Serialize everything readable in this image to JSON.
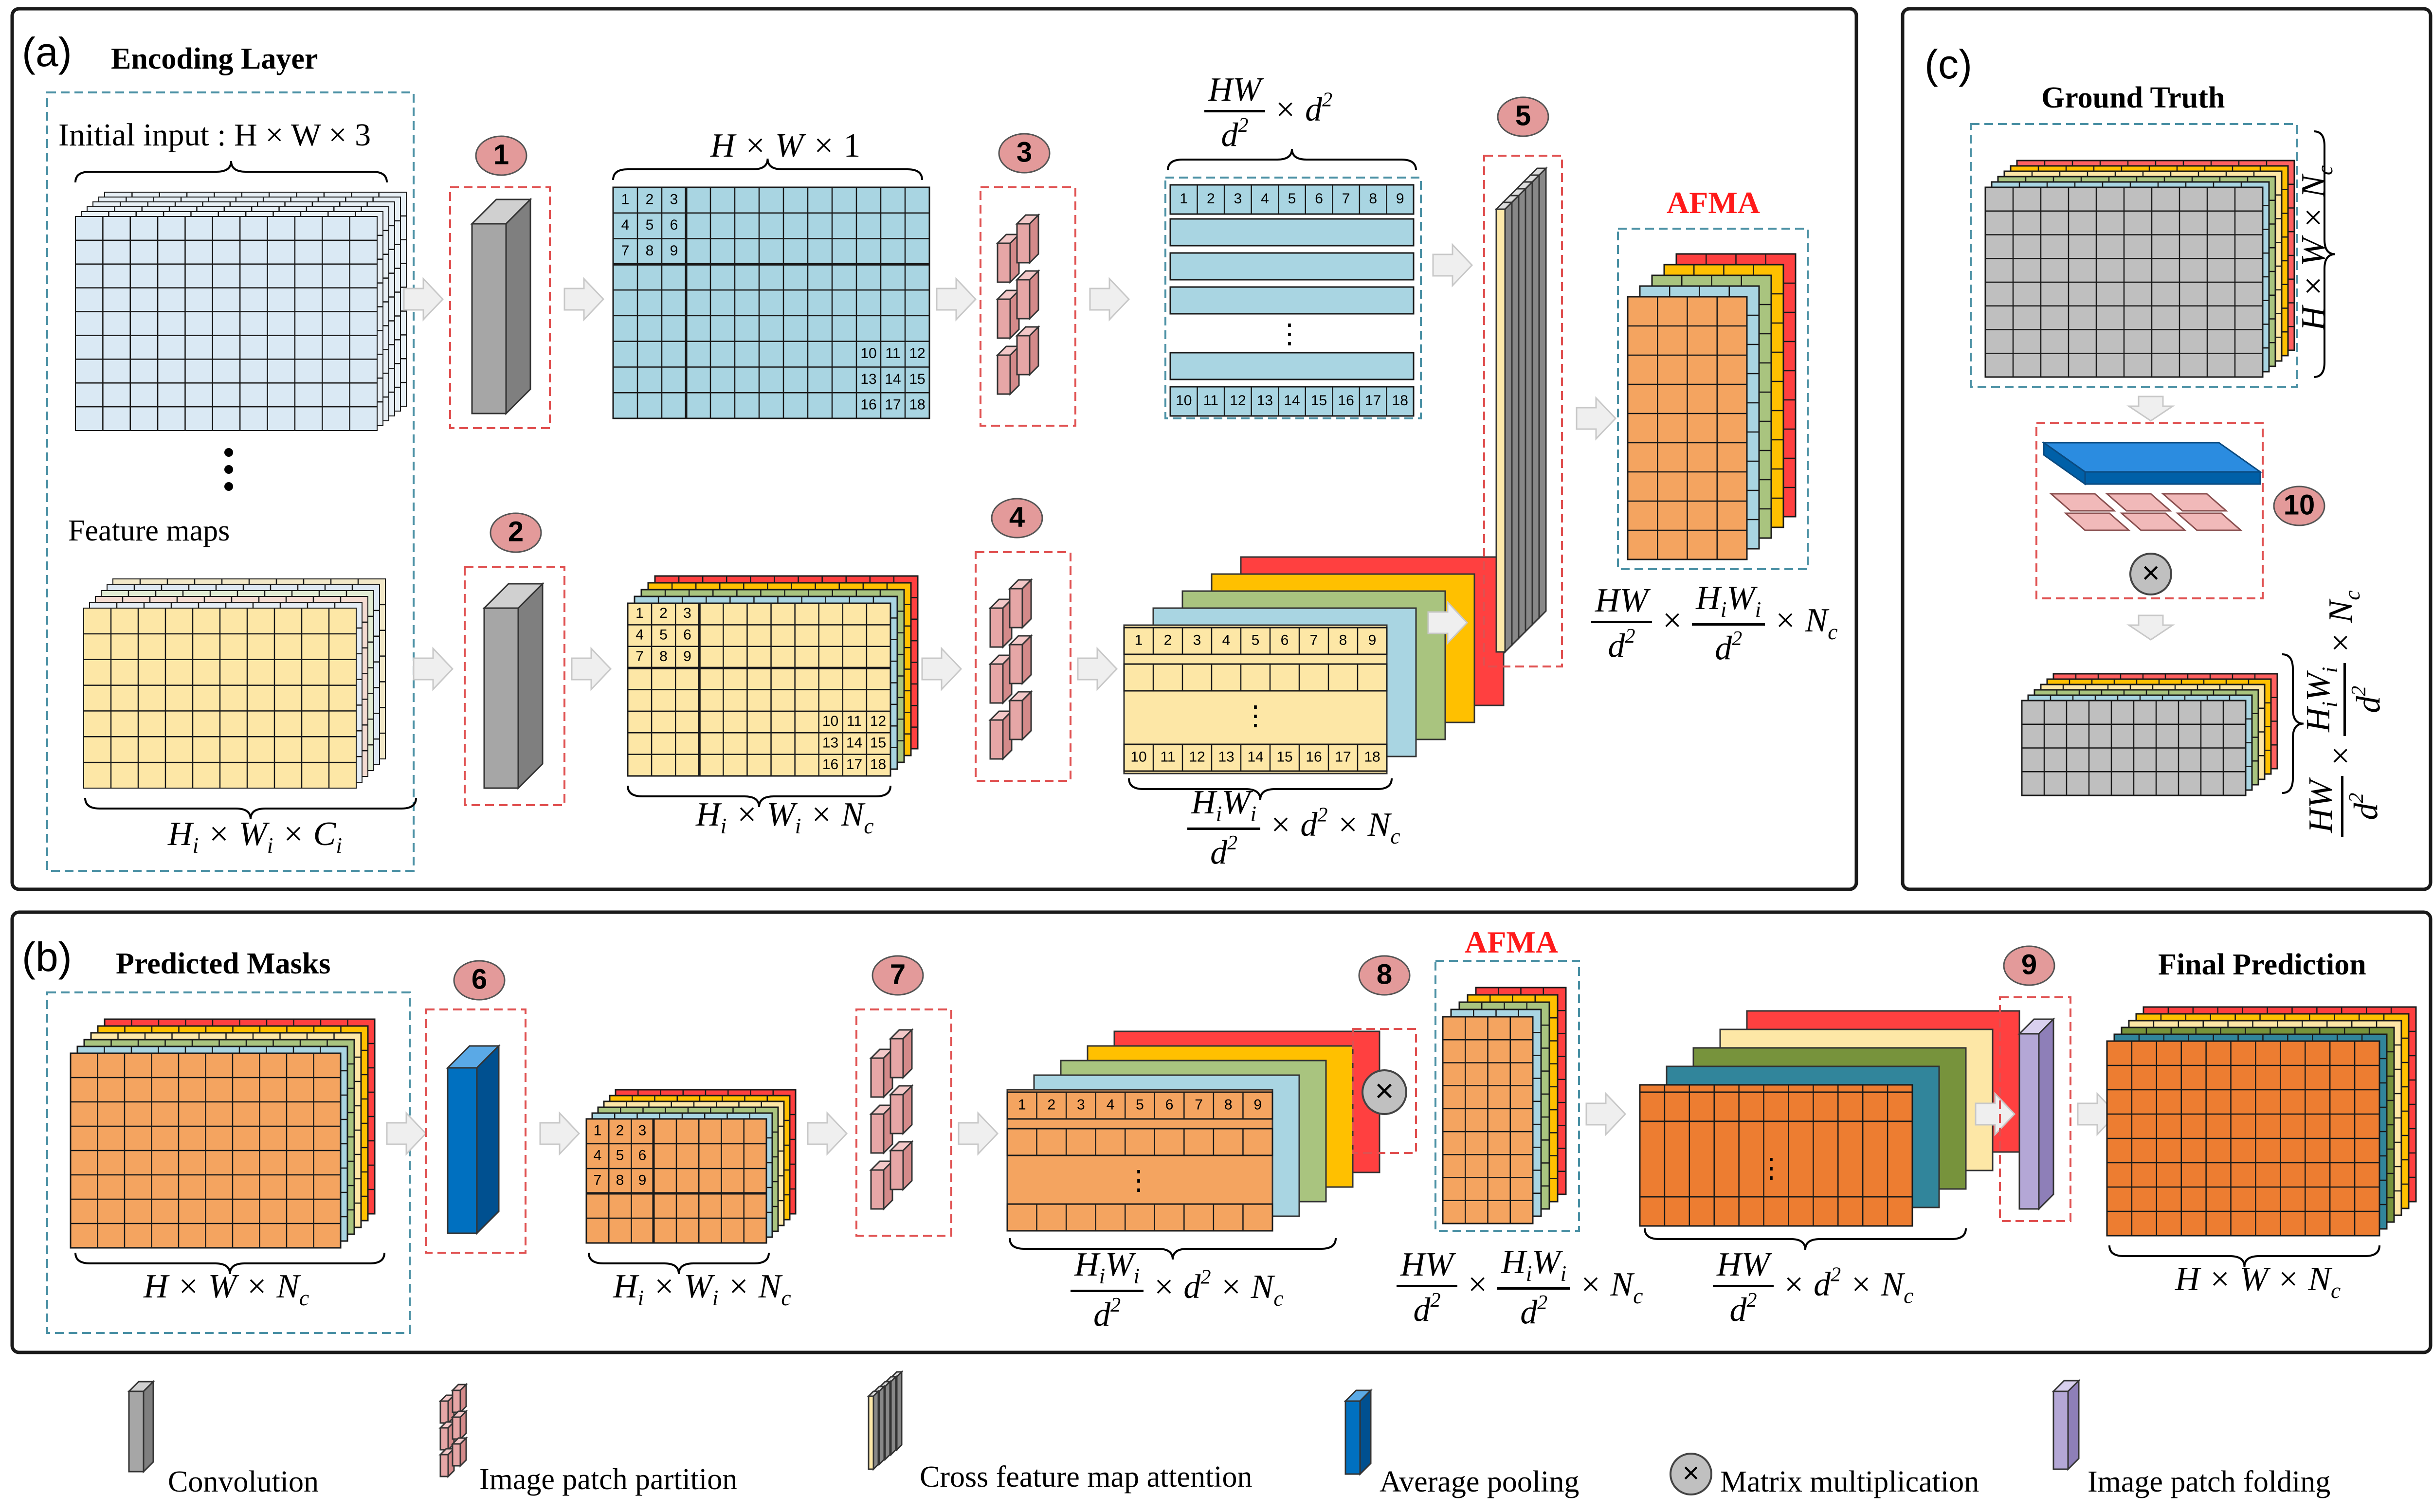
{
  "panels": {
    "a": {
      "label": "(a)",
      "title": "Encoding Layer"
    },
    "b": {
      "label": "(b)",
      "title": "Predicted Masks",
      "final_title": "Final Prediction"
    },
    "c": {
      "label": "(c)",
      "title": "Ground Truth"
    }
  },
  "texts": {
    "initial_input": "Initial input : H × W × 3",
    "feature_maps": "Feature maps",
    "afma": "AFMA",
    "vdots": "⋮",
    "dots3": "⋮"
  },
  "steps": [
    "1",
    "2",
    "3",
    "4",
    "5",
    "6",
    "7",
    "8",
    "9",
    "10"
  ],
  "cell_numbers": {
    "top": [
      [
        "1",
        "2",
        "3"
      ],
      [
        "4",
        "5",
        "6"
      ],
      [
        "7",
        "8",
        "9"
      ]
    ],
    "bottom": [
      [
        "10",
        "11",
        "12"
      ],
      [
        "13",
        "14",
        "15"
      ],
      [
        "16",
        "17",
        "18"
      ]
    ],
    "row_first": [
      "1",
      "2",
      "3",
      "4",
      "5",
      "6",
      "7",
      "8",
      "9"
    ],
    "row_last": [
      "10",
      "11",
      "12",
      "13",
      "14",
      "15",
      "16",
      "17",
      "18"
    ]
  },
  "colors": {
    "light_blue": "#dae9f4",
    "teal_blue": "#a9d5e2",
    "yellow": "#fde7a6",
    "orange": "#f4a460",
    "deep_orange": "#ed7d31",
    "red": "#ff4040",
    "gold": "#ffc000",
    "green": "#a9c47f",
    "dark_teal": "#31859b",
    "pink": "#e6a6a6",
    "conv_gray": "#a6a6a6",
    "avgpool_blue": "#0070c0",
    "fold_purple": "#b4a7d6",
    "step_badge": "#e39a9a",
    "dashed_box": "#4a90a4",
    "red_dashed": "#e05050"
  },
  "legend": [
    {
      "icon": "convolution-icon",
      "label": "Convolution"
    },
    {
      "icon": "image-patch-partition-icon",
      "label": "Image patch partition"
    },
    {
      "icon": "cross-feature-map-attention-icon",
      "label": "Cross feature map attention"
    },
    {
      "icon": "average-pooling-icon",
      "label": "Average pooling"
    },
    {
      "icon": "matrix-multiplication-icon",
      "label": "Matrix multiplication"
    },
    {
      "icon": "image-patch-folding-icon",
      "label": "Image patch folding"
    }
  ]
}
